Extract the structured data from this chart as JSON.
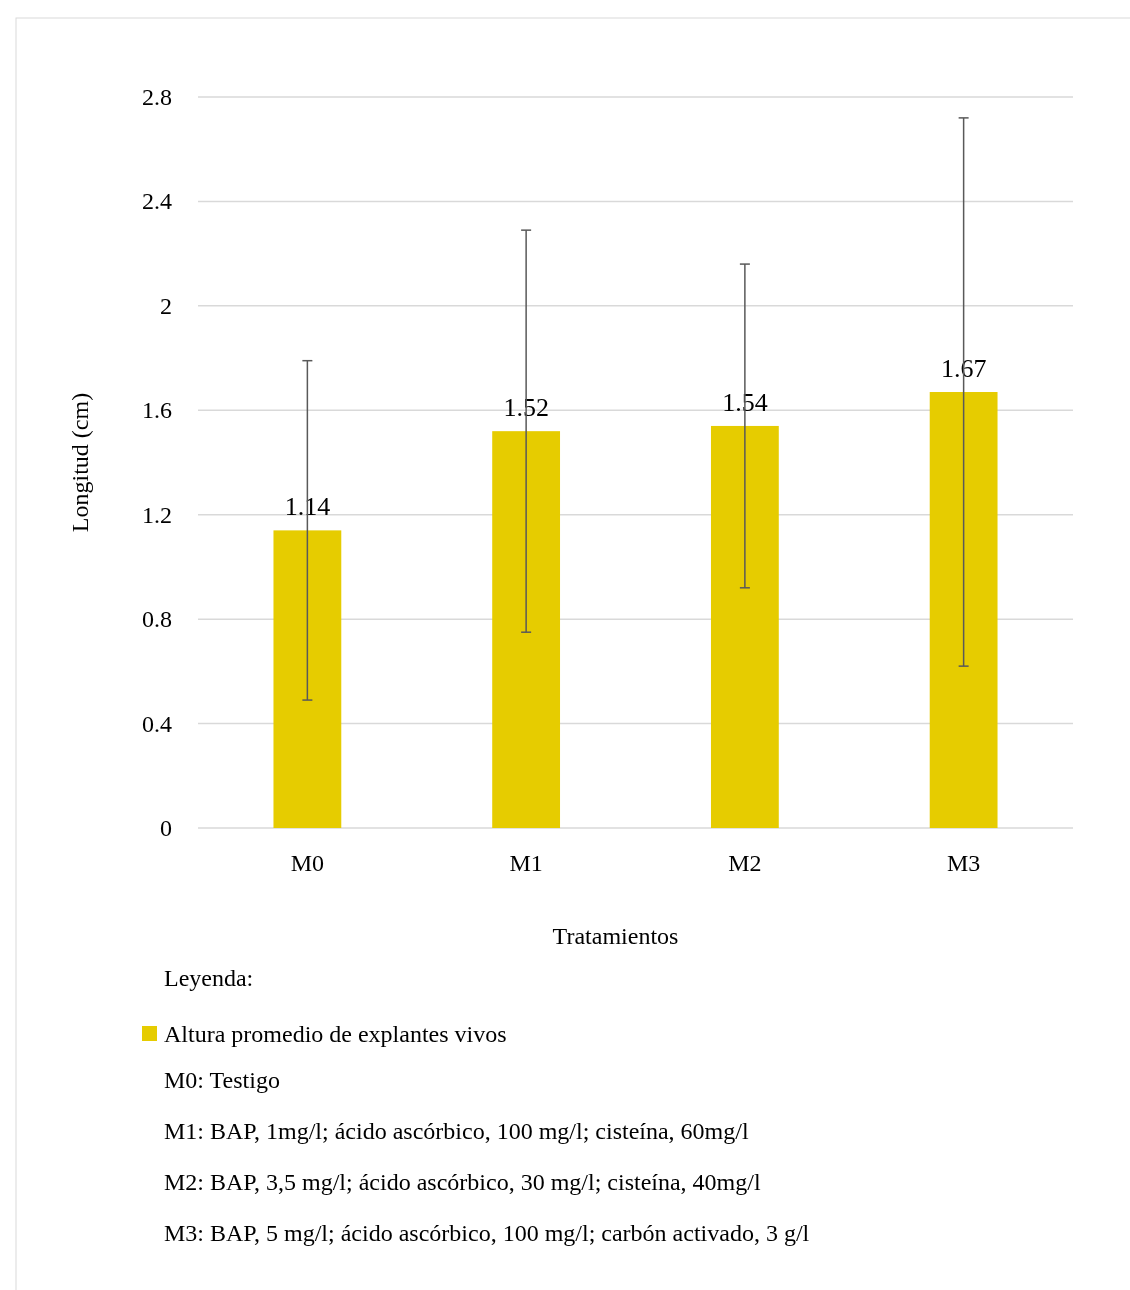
{
  "chart_data": {
    "type": "bar",
    "xlabel": "Tratamientos",
    "ylabel": "Longitud (cm)",
    "categories": [
      "M0",
      "M1",
      "M2",
      "M3"
    ],
    "series": [
      {
        "name": "Altura promedio de explantes vivos",
        "color": "#e6cc00",
        "values": [
          1.14,
          1.52,
          1.54,
          1.67
        ],
        "errors": [
          0.65,
          0.77,
          0.62,
          1.05
        ]
      }
    ],
    "ylim": [
      0,
      2.8
    ],
    "yticks": [
      0,
      0.4,
      0.8,
      1.2,
      1.6,
      2,
      2.4,
      2.8
    ],
    "grid": "y",
    "data_labels": true,
    "legend": "bottom",
    "legend_title": "Leyenda:",
    "annotations": [
      "M0: Testigo",
      "M1: BAP, 1mg/l; ácido ascórbico, 100 mg/l; cisteína, 60mg/l",
      "M2: BAP, 3,5 mg/l; ácido ascórbico, 30 mg/l; cisteína, 40mg/l",
      "M3: BAP, 5 mg/l; ácido ascórbico, 100 mg/l; carbón activado, 3 g/l"
    ]
  }
}
